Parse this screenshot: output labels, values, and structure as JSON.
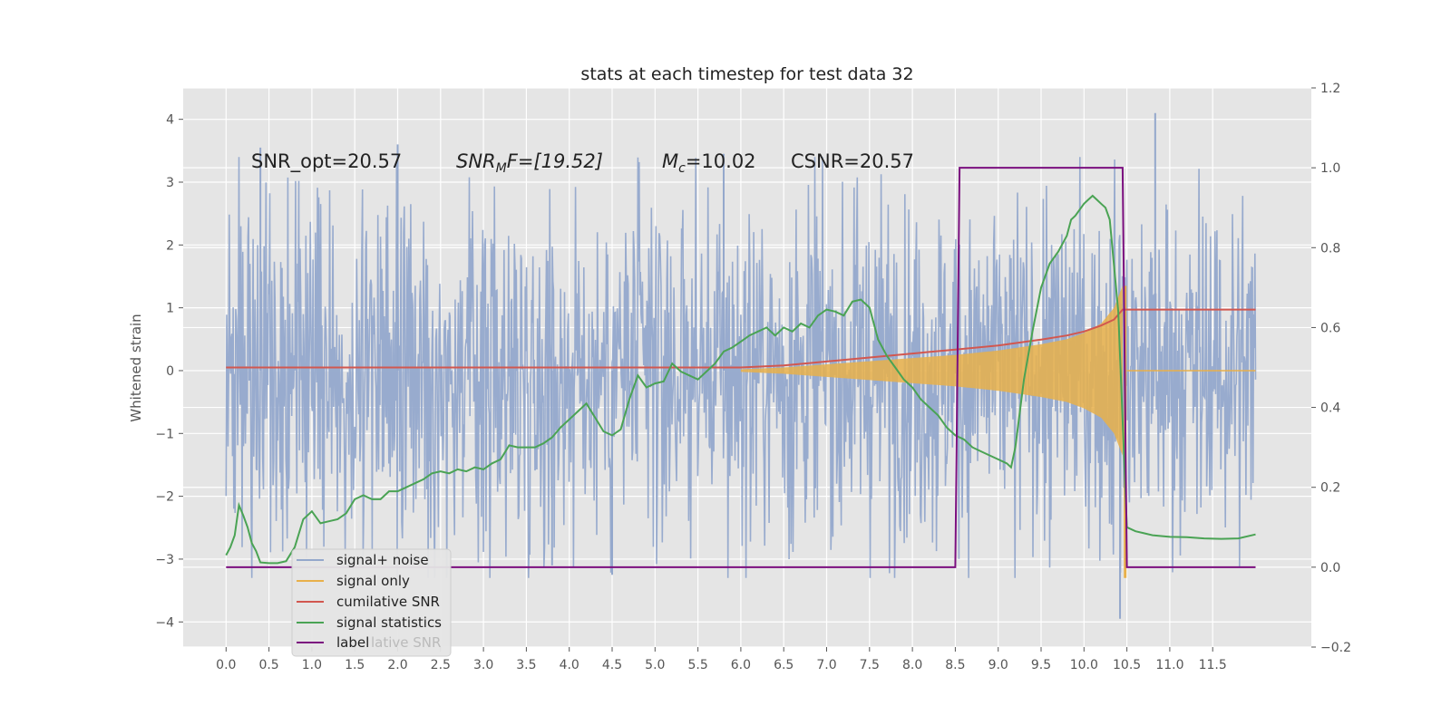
{
  "chart_data": {
    "type": "line",
    "title": "stats at each timestep for test data 32",
    "ylabel": "Whitened strain",
    "xlabel": "",
    "xlim": [
      -0.5,
      12.65
    ],
    "ylim": [
      -4.4,
      4.5
    ],
    "y2lim": [
      -0.2,
      1.2
    ],
    "grid": true,
    "legend_position": "lower-left",
    "x_ticks": [
      "0.0",
      "0.5",
      "1.0",
      "1.5",
      "2.0",
      "2.5",
      "3.0",
      "3.5",
      "4.0",
      "4.5",
      "5.0",
      "5.5",
      "6.0",
      "6.5",
      "7.0",
      "7.5",
      "8.0",
      "8.5",
      "9.0",
      "9.5",
      "10.0",
      "10.5",
      "11.0",
      "11.5"
    ],
    "y_ticks": [
      "4",
      "3",
      "2",
      "1",
      "0",
      "−1",
      "−2",
      "−3",
      "−4"
    ],
    "y2_ticks": [
      "1.2",
      "1.0",
      "0.8",
      "0.6",
      "0.4",
      "0.2",
      "0.0",
      "−0.2"
    ],
    "annotations": {
      "snr_opt": "SNR_opt=20.57",
      "snr_mf_base": "SNR",
      "snr_mf_sub": "M",
      "snr_mf_rest": "F=[19.52]",
      "mc_base": "M",
      "mc_sub": "c",
      "mc_rest": "=10.02",
      "csnr": "CSNR=20.57"
    },
    "legend": [
      "signal+ noise",
      "signal only",
      "cumilative SNR",
      "signal statistics",
      "label"
    ],
    "legend_ghost": "lative SNR",
    "colors": {
      "noise": "#94a8cc",
      "signal": "#e8b04a",
      "cumulative": "#d2574f",
      "statistics": "#4aa354",
      "label": "#7b0f7f",
      "background": "#e5e5e5",
      "grid": "#ffffff"
    },
    "series": [
      {
        "name": "signal+ noise",
        "axis": "left",
        "x_range": [
          0.0,
          12.0
        ],
        "typical_amplitude": 1.8,
        "peak_values": [
          [
            0.4,
            3.55
          ],
          [
            2.0,
            3.6
          ],
          [
            5.8,
            3.45
          ],
          [
            10.83,
            4.1
          ],
          [
            10.42,
            -3.95
          ],
          [
            4.5,
            -3.25
          ],
          [
            3.8,
            -3.1
          ]
        ]
      },
      {
        "name": "signal only",
        "axis": "left",
        "x": [
          6.0,
          6.5,
          7.0,
          7.5,
          8.0,
          8.5,
          9.0,
          9.5,
          9.8,
          10.0,
          10.2,
          10.35,
          10.45,
          10.5
        ],
        "envelope": [
          0.02,
          0.05,
          0.1,
          0.15,
          0.2,
          0.25,
          0.32,
          0.42,
          0.5,
          0.6,
          0.75,
          1.0,
          1.35,
          0.0
        ],
        "min_value": -3.3
      },
      {
        "name": "cumilative SNR",
        "axis": "right",
        "x": [
          0.0,
          6.0,
          6.5,
          7.0,
          7.5,
          8.0,
          8.5,
          9.0,
          9.5,
          9.8,
          10.0,
          10.2,
          10.35,
          10.45,
          10.5,
          12.0
        ],
        "values": [
          0.5,
          0.5,
          0.505,
          0.515,
          0.525,
          0.535,
          0.545,
          0.555,
          0.57,
          0.58,
          0.59,
          0.605,
          0.62,
          0.645,
          0.645,
          0.645
        ]
      },
      {
        "name": "signal statistics",
        "axis": "right",
        "x": [
          0.0,
          0.05,
          0.1,
          0.15,
          0.2,
          0.25,
          0.3,
          0.35,
          0.4,
          0.5,
          0.6,
          0.7,
          0.8,
          0.9,
          1.0,
          1.1,
          1.2,
          1.3,
          1.4,
          1.5,
          1.6,
          1.7,
          1.8,
          1.9,
          2.0,
          2.1,
          2.2,
          2.3,
          2.4,
          2.5,
          2.6,
          2.7,
          2.8,
          2.9,
          3.0,
          3.1,
          3.2,
          3.3,
          3.4,
          3.5,
          3.6,
          3.7,
          3.8,
          3.9,
          4.0,
          4.1,
          4.2,
          4.3,
          4.4,
          4.5,
          4.6,
          4.7,
          4.8,
          4.9,
          5.0,
          5.1,
          5.2,
          5.3,
          5.4,
          5.5,
          5.6,
          5.7,
          5.8,
          5.9,
          6.0,
          6.1,
          6.2,
          6.3,
          6.4,
          6.5,
          6.6,
          6.7,
          6.8,
          6.9,
          7.0,
          7.1,
          7.2,
          7.3,
          7.4,
          7.5,
          7.6,
          7.7,
          7.8,
          7.9,
          8.0,
          8.1,
          8.2,
          8.3,
          8.4,
          8.5,
          8.6,
          8.7,
          8.8,
          8.9,
          9.0,
          9.1,
          9.15,
          9.2,
          9.3,
          9.4,
          9.5,
          9.6,
          9.7,
          9.8,
          9.85,
          9.9,
          10.0,
          10.05,
          10.1,
          10.15,
          10.2,
          10.25,
          10.3,
          10.4,
          10.5,
          10.6,
          10.7,
          10.8,
          10.9,
          11.0,
          11.2,
          11.4,
          11.6,
          11.8,
          12.0
        ],
        "values": [
          0.03,
          0.05,
          0.08,
          0.155,
          0.13,
          0.1,
          0.06,
          0.04,
          0.012,
          0.01,
          0.01,
          0.015,
          0.05,
          0.12,
          0.14,
          0.11,
          0.115,
          0.12,
          0.135,
          0.17,
          0.18,
          0.17,
          0.17,
          0.19,
          0.19,
          0.2,
          0.21,
          0.22,
          0.235,
          0.24,
          0.235,
          0.245,
          0.24,
          0.25,
          0.245,
          0.26,
          0.27,
          0.305,
          0.3,
          0.3,
          0.3,
          0.31,
          0.325,
          0.35,
          0.37,
          0.39,
          0.41,
          0.375,
          0.34,
          0.33,
          0.345,
          0.42,
          0.48,
          0.45,
          0.46,
          0.465,
          0.51,
          0.49,
          0.48,
          0.47,
          0.49,
          0.51,
          0.54,
          0.55,
          0.565,
          0.58,
          0.59,
          0.6,
          0.58,
          0.6,
          0.59,
          0.61,
          0.6,
          0.63,
          0.645,
          0.64,
          0.63,
          0.665,
          0.67,
          0.65,
          0.57,
          0.53,
          0.5,
          0.47,
          0.45,
          0.42,
          0.4,
          0.38,
          0.35,
          0.33,
          0.32,
          0.3,
          0.29,
          0.28,
          0.27,
          0.26,
          0.25,
          0.3,
          0.47,
          0.59,
          0.7,
          0.76,
          0.79,
          0.83,
          0.87,
          0.88,
          0.91,
          0.92,
          0.93,
          0.92,
          0.91,
          0.9,
          0.87,
          0.64,
          0.1,
          0.09,
          0.085,
          0.08,
          0.078,
          0.076,
          0.075,
          0.072,
          0.071,
          0.072,
          0.082
        ]
      },
      {
        "name": "label",
        "axis": "right",
        "x": [
          0.0,
          8.5,
          8.55,
          10.45,
          10.5,
          12.0
        ],
        "values": [
          0.0,
          0.0,
          1.0,
          1.0,
          0.0,
          0.0
        ]
      }
    ]
  }
}
